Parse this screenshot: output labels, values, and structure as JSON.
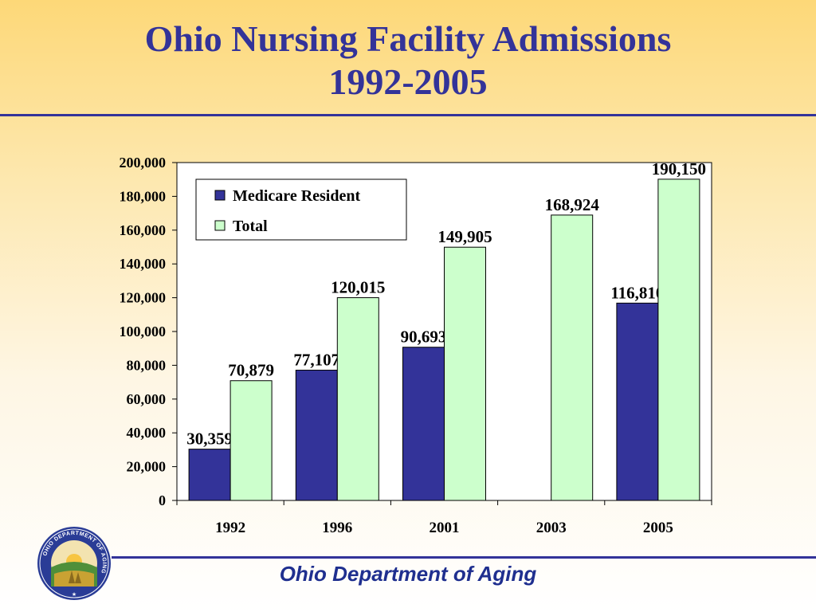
{
  "slide": {
    "title_line1": "Ohio Nursing Facility Admissions",
    "title_line2": "1992-2005",
    "footer": "Ohio Department of Aging",
    "seal_text": "OHIO DEPARTMENT OF AGING"
  },
  "colors": {
    "title": "#333399",
    "medicare": "#333399",
    "total": "#ccffcc",
    "rule": "#333399"
  },
  "chart_data": {
    "type": "bar",
    "categories": [
      "1992",
      "1996",
      "2001",
      "2003",
      "2005"
    ],
    "series": [
      {
        "name": "Medicare Resident",
        "color": "#333399",
        "values": [
          30359,
          77107,
          90693,
          null,
          116810
        ],
        "labels": [
          "30,359",
          "77,107",
          "90,693",
          "",
          "116,810"
        ]
      },
      {
        "name": "Total",
        "color": "#ccffcc",
        "values": [
          70879,
          120015,
          149905,
          168924,
          190150
        ],
        "labels": [
          "70,879",
          "120,015",
          "149,905",
          "168,924",
          "190,150"
        ]
      }
    ],
    "ylim": [
      0,
      200000
    ],
    "yticks": [
      0,
      20000,
      40000,
      60000,
      80000,
      100000,
      120000,
      140000,
      160000,
      180000,
      200000
    ],
    "ytick_labels": [
      "0",
      "20,000",
      "40,000",
      "60,000",
      "80,000",
      "100,000",
      "120,000",
      "140,000",
      "160,000",
      "180,000",
      "200,000"
    ],
    "legend_position": "top-left",
    "grid": false
  }
}
